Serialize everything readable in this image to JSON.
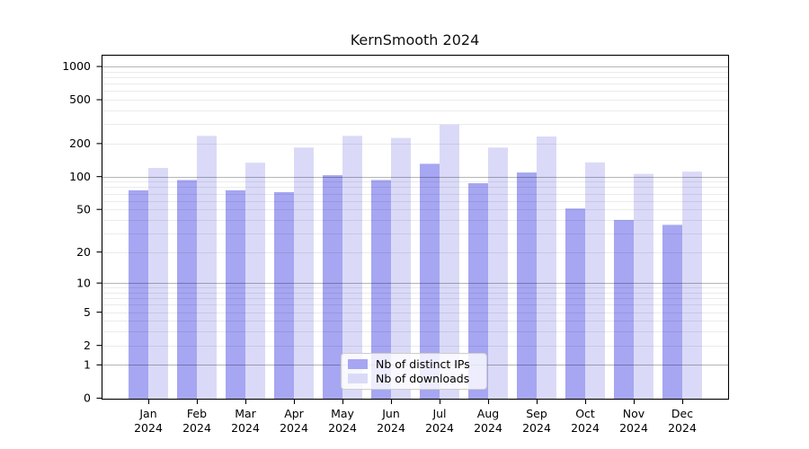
{
  "chart_data": {
    "type": "bar",
    "title": "KernSmooth 2024",
    "xlabel": "",
    "ylabel": "",
    "y_scale": "log10(1+x)",
    "y_ticks": [
      0,
      1,
      2,
      5,
      10,
      20,
      50,
      100,
      200,
      500,
      1000
    ],
    "y_tick_labels": [
      "0",
      "1",
      "2",
      "5",
      "10",
      "20",
      "50",
      "100",
      "200",
      "500",
      "1000"
    ],
    "ylim": [
      0,
      1250
    ],
    "grid": "minor and major horizontal gridlines, drawn over bars",
    "categories": [
      "Jan",
      "Feb",
      "Mar",
      "Apr",
      "May",
      "Jun",
      "Jul",
      "Aug",
      "Sep",
      "Oct",
      "Nov",
      "Dec"
    ],
    "x_tick_second_line": "2024",
    "series": [
      {
        "name": "Nb of distinct IPs",
        "color": "#a6a6f2",
        "values": [
          75,
          93,
          75,
          72,
          103,
          93,
          131,
          87,
          109,
          51,
          40,
          36
        ]
      },
      {
        "name": "Nb of downloads",
        "color": "#dadaf8",
        "values": [
          120,
          235,
          134,
          184,
          235,
          225,
          297,
          184,
          232,
          135,
          106,
          111
        ]
      }
    ],
    "legend_position": "lower center"
  },
  "colors": {
    "background": "#ffffff",
    "spine": "#000000",
    "major_gridline": "#b5b5b5",
    "minor_gridline": "#ebebeb",
    "tick_text": "#000000",
    "title_text": "#111111"
  }
}
